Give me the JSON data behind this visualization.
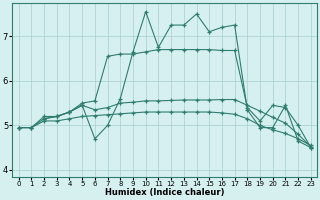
{
  "xlabel": "Humidex (Indice chaleur)",
  "background_color": "#d6f0f0",
  "line_color": "#2e7d6e",
  "xlim": [
    -0.5,
    23.5
  ],
  "ylim": [
    3.85,
    7.75
  ],
  "xticks": [
    0,
    1,
    2,
    3,
    4,
    5,
    6,
    7,
    8,
    9,
    10,
    11,
    12,
    13,
    14,
    15,
    16,
    17,
    18,
    19,
    20,
    21,
    22,
    23
  ],
  "yticks": [
    4,
    5,
    6,
    7
  ],
  "series": [
    {
      "x": [
        0,
        1,
        2,
        3,
        4,
        5,
        6,
        7,
        8,
        9,
        10,
        11,
        12,
        13,
        14,
        15,
        16,
        17,
        18,
        19,
        20,
        21,
        22,
        23
      ],
      "y": [
        4.95,
        4.95,
        5.15,
        5.2,
        5.3,
        5.45,
        4.7,
        5.0,
        5.6,
        6.65,
        7.55,
        6.75,
        7.25,
        7.25,
        7.5,
        7.1,
        7.2,
        7.25,
        5.35,
        4.95,
        4.95,
        5.45,
        4.65,
        4.5
      ]
    },
    {
      "x": [
        2,
        3,
        4,
        5,
        6,
        7,
        8,
        9,
        10,
        11,
        12,
        13,
        14,
        15,
        16,
        17,
        18,
        19,
        20,
        21,
        22,
        23
      ],
      "y": [
        5.15,
        5.2,
        5.3,
        5.5,
        5.55,
        6.55,
        6.6,
        6.6,
        6.65,
        6.7,
        6.7,
        6.7,
        6.7,
        6.7,
        6.68,
        6.68,
        5.4,
        5.1,
        5.45,
        5.4,
        5.0,
        4.5
      ]
    },
    {
      "x": [
        0,
        1,
        2,
        3,
        4,
        5,
        6,
        7,
        8,
        9,
        10,
        11,
        12,
        13,
        14,
        15,
        16,
        17,
        18,
        19,
        20,
        21,
        22,
        23
      ],
      "y": [
        4.95,
        4.95,
        5.2,
        5.2,
        5.3,
        5.45,
        5.35,
        5.4,
        5.5,
        5.52,
        5.55,
        5.55,
        5.56,
        5.57,
        5.57,
        5.57,
        5.58,
        5.58,
        5.45,
        5.32,
        5.18,
        5.05,
        4.8,
        4.52
      ]
    },
    {
      "x": [
        0,
        1,
        2,
        3,
        4,
        5,
        6,
        7,
        8,
        9,
        10,
        11,
        12,
        13,
        14,
        15,
        16,
        17,
        18,
        19,
        20,
        21,
        22,
        23
      ],
      "y": [
        4.95,
        4.95,
        5.1,
        5.1,
        5.15,
        5.2,
        5.22,
        5.24,
        5.26,
        5.28,
        5.3,
        5.3,
        5.3,
        5.3,
        5.3,
        5.3,
        5.28,
        5.25,
        5.15,
        5.0,
        4.9,
        4.82,
        4.7,
        4.55
      ]
    }
  ]
}
